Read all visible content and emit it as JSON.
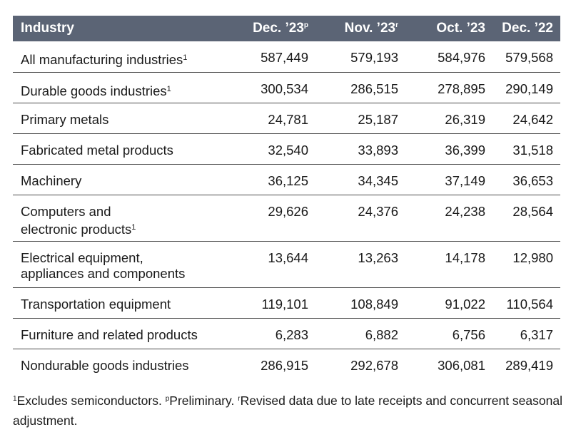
{
  "header": {
    "industry": "Industry",
    "col1": "Dec. ’23",
    "col1_sup": "p",
    "col2": "Nov. ’23",
    "col2_sup": "r",
    "col3": "Oct. ’23",
    "col4": "Dec. ’22"
  },
  "rows": [
    {
      "label": "All manufacturing industries",
      "sup": "1",
      "v1": "587,449",
      "v2": "579,193",
      "v3": "584,976",
      "v4": "579,568"
    },
    {
      "label": "Durable goods industries",
      "sup": "1",
      "v1": "300,534",
      "v2": "286,515",
      "v3": "278,895",
      "v4": "290,149"
    },
    {
      "label": "Primary metals",
      "v1": "24,781",
      "v2": "25,187",
      "v3": "26,319",
      "v4": "24,642"
    },
    {
      "label": "Fabricated metal products",
      "v1": "32,540",
      "v2": "33,893",
      "v3": "36,399",
      "v4": "31,518"
    },
    {
      "label": "Machinery",
      "v1": "36,125",
      "v2": "34,345",
      "v3": "37,149",
      "v4": "36,653"
    },
    {
      "label_line1": "Computers and",
      "label_line2": "electronic products",
      "sup": "1",
      "v1": "29,626",
      "v2": "24,376",
      "v3": "24,238",
      "v4": "28,564"
    },
    {
      "label_line1": "Electrical equipment,",
      "label_line2": "appliances and components",
      "v1": "13,644",
      "v2": "13,263",
      "v3": "14,178",
      "v4": "12,980"
    },
    {
      "label": "Transportation equipment",
      "v1": "119,101",
      "v2": "108,849",
      "v3": "91,022",
      "v4": "110,564"
    },
    {
      "label": "Furniture and related products",
      "v1": "6,283",
      "v2": "6,882",
      "v3": "6,756",
      "v4": "6,317"
    },
    {
      "label": "Nondurable goods industries",
      "v1": "286,915",
      "v2": "292,678",
      "v3": "306,081",
      "v4": "289,419"
    }
  ],
  "footnote": {
    "sup1": "1",
    "text1": "Excludes semiconductors. ",
    "sup_p": "p",
    "text_p": "Preliminary. ",
    "sup_r": "r",
    "text_r": "Revised data due to late receipts and concurrent seasonal adjustment."
  },
  "colors": {
    "header_bg": "#5b6475",
    "header_text": "#ffffff",
    "rule": "#4a4a4a"
  }
}
